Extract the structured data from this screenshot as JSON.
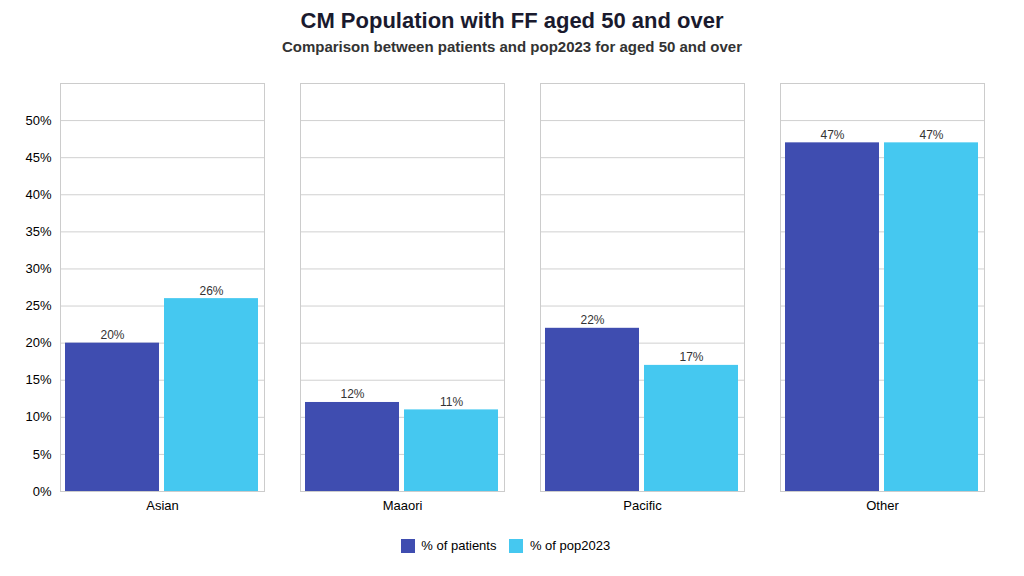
{
  "chart_data": {
    "type": "bar",
    "title": "CM Population with FF aged 50 and over",
    "subtitle": "Comparison between patients and pop2023 for aged 50 and over",
    "categories": [
      "Asian",
      "Maaori",
      "Pacific",
      "Other"
    ],
    "series": [
      {
        "name": "% of patients",
        "color": "#3F4DB0",
        "values": [
          0.2,
          0.12,
          0.22,
          0.47
        ],
        "value_labels": [
          "20%",
          "12%",
          "22%",
          "47%"
        ]
      },
      {
        "name": "% of pop2023",
        "color": "#45C8F0",
        "values": [
          0.26,
          0.11,
          0.17,
          0.47
        ],
        "value_labels": [
          "26%",
          "11%",
          "17%",
          "47%"
        ]
      }
    ],
    "ylim": [
      0,
      0.55
    ],
    "yticks": [
      {
        "value": 0.0,
        "label": "0%"
      },
      {
        "value": 0.05,
        "label": "5%"
      },
      {
        "value": 0.1,
        "label": "10%"
      },
      {
        "value": 0.15,
        "label": "15%"
      },
      {
        "value": 0.2,
        "label": "20%"
      },
      {
        "value": 0.25,
        "label": "25%"
      },
      {
        "value": 0.3,
        "label": "30%"
      },
      {
        "value": 0.35,
        "label": "35%"
      },
      {
        "value": 0.4,
        "label": "40%"
      },
      {
        "value": 0.45,
        "label": "45%"
      },
      {
        "value": 0.5,
        "label": "50%"
      }
    ],
    "grid": true,
    "legend": "bottom",
    "data_labels": true
  }
}
